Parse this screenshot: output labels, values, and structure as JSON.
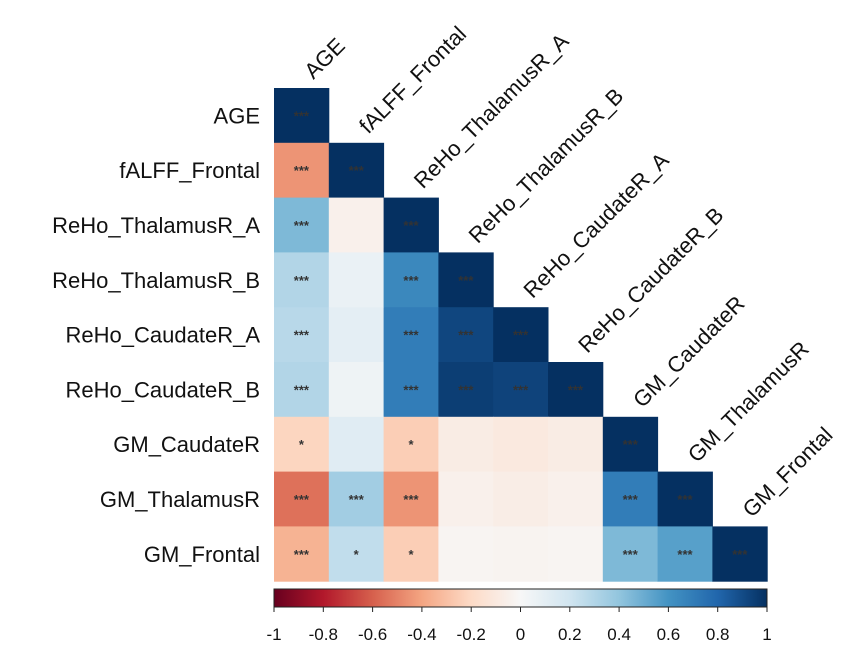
{
  "chart_data": {
    "type": "heatmap",
    "title": "",
    "variables": [
      "AGE",
      "fALFF_Frontal",
      "ReHo_ThalamusR_A",
      "ReHo_ThalamusR_B",
      "ReHo_CaudateR_A",
      "ReHo_CaudateR_B",
      "GM_CaudateR",
      "GM_ThalamusR",
      "GM_Frontal"
    ],
    "matrix": [
      [
        1.0
      ],
      [
        -0.45,
        1.0
      ],
      [
        0.45,
        -0.05,
        1.0
      ],
      [
        0.3,
        0.07,
        0.65,
        1.0
      ],
      [
        0.28,
        0.1,
        0.7,
        0.92,
        1.0
      ],
      [
        0.3,
        0.05,
        0.7,
        0.95,
        0.93,
        1.0
      ],
      [
        -0.22,
        0.12,
        -0.25,
        -0.08,
        -0.1,
        -0.08,
        1.0
      ],
      [
        -0.55,
        0.35,
        -0.45,
        -0.05,
        -0.07,
        -0.05,
        0.7,
        1.0
      ],
      [
        -0.35,
        0.25,
        -0.25,
        -0.02,
        -0.03,
        -0.02,
        0.45,
        0.55,
        1.0
      ]
    ],
    "significance": [
      [
        "***"
      ],
      [
        "***",
        "***"
      ],
      [
        "***",
        "",
        "***"
      ],
      [
        "***",
        "",
        "***",
        "***"
      ],
      [
        "***",
        "",
        "***",
        "***",
        "***"
      ],
      [
        "***",
        "",
        "***",
        "***",
        "***",
        "***"
      ],
      [
        "*",
        "",
        "*",
        "",
        "",
        "",
        "***"
      ],
      [
        "***",
        "***",
        "***",
        "",
        "",
        "",
        "***",
        "***"
      ],
      [
        "***",
        "*",
        "*",
        "",
        "",
        "",
        "***",
        "***",
        "***"
      ]
    ],
    "colorbar": {
      "range": [
        -1,
        1
      ],
      "ticks": [
        -1,
        -0.8,
        -0.6,
        -0.4,
        -0.2,
        0,
        0.2,
        0.4,
        0.6,
        0.8,
        1
      ],
      "tick_labels": [
        "-1",
        "-0.8",
        "-0.6",
        "-0.4",
        "-0.2",
        "0",
        "0.2",
        "0.4",
        "0.6",
        "0.8",
        "1"
      ],
      "colors": [
        "#67001f",
        "#b2182b",
        "#d6604d",
        "#f4a582",
        "#fddbc7",
        "#f7f7f7",
        "#d1e5f0",
        "#92c5de",
        "#4393c3",
        "#2166ac",
        "#053061"
      ],
      "placement": "bottom"
    }
  }
}
